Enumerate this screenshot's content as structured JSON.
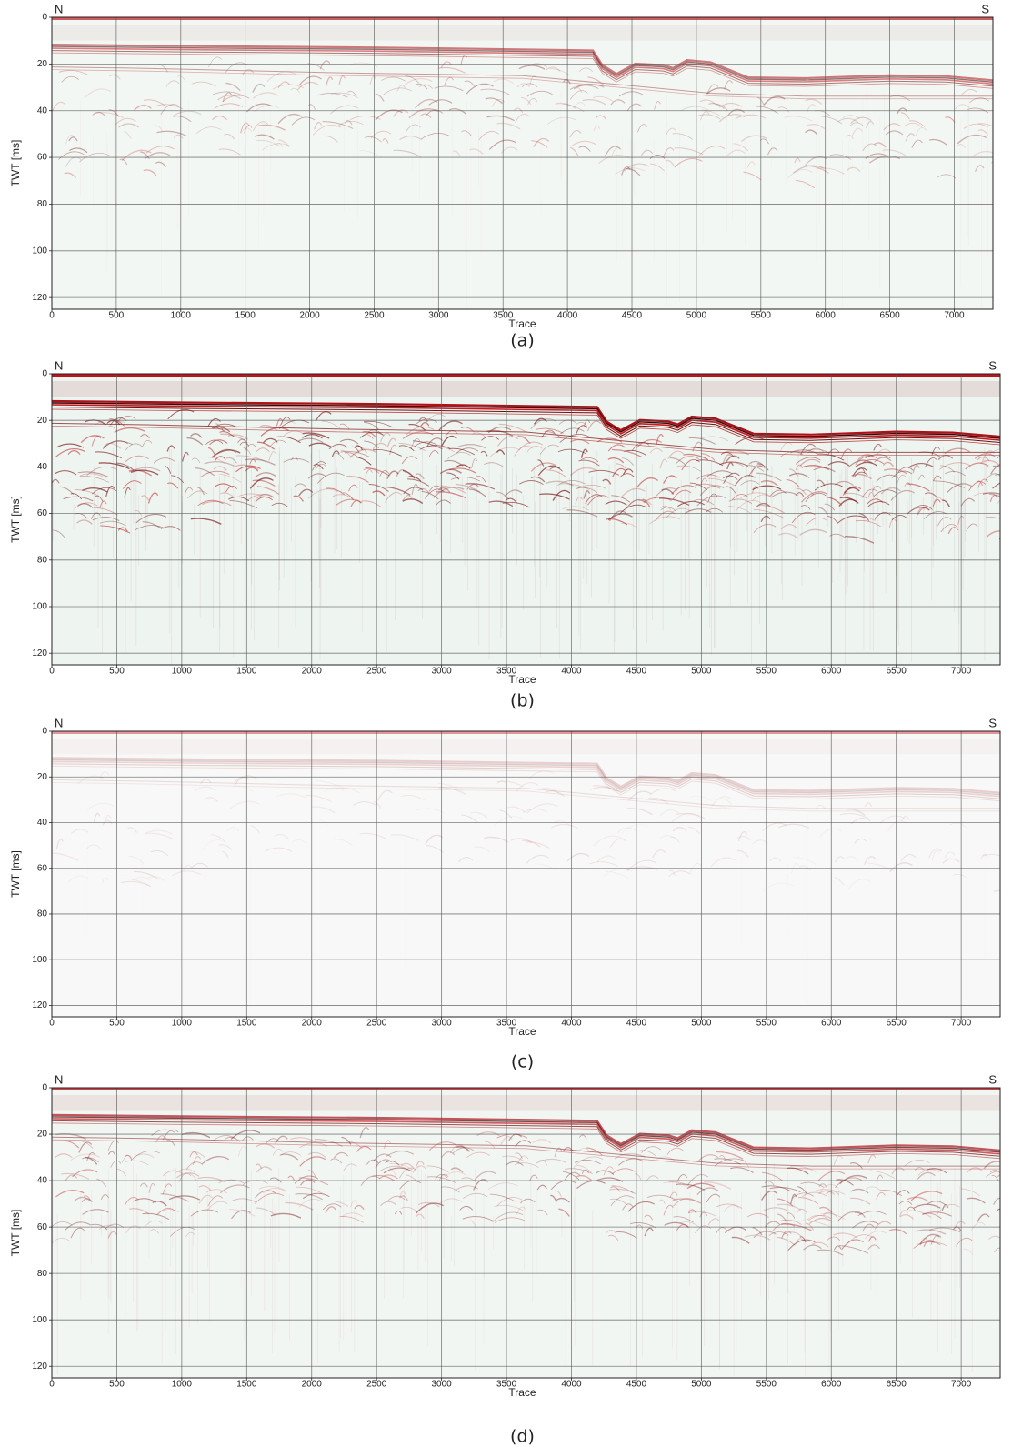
{
  "chart_data": [
    {
      "type": "seismic",
      "caption": "(a)",
      "left_label": "N",
      "right_label": "S",
      "xlabel": "Trace",
      "ylabel": "TWT [ms]",
      "xlim": [
        0,
        7300
      ],
      "ylim": [
        125,
        0
      ],
      "xticks": [
        0,
        500,
        1000,
        1500,
        2000,
        2500,
        3000,
        3500,
        4000,
        4500,
        5000,
        5500,
        6000,
        6500,
        7000
      ],
      "yticks": [
        0,
        20,
        40,
        60,
        80,
        100,
        120
      ],
      "grid": true
    },
    {
      "type": "seismic",
      "caption": "(b)",
      "left_label": "N",
      "right_label": "S",
      "xlabel": "Trace",
      "ylabel": "TWT [ms]",
      "xlim": [
        0,
        7300
      ],
      "ylim": [
        125,
        0
      ],
      "xticks": [
        0,
        500,
        1000,
        1500,
        2000,
        2500,
        3000,
        3500,
        4000,
        4500,
        5000,
        5500,
        6000,
        6500,
        7000
      ],
      "yticks": [
        0,
        20,
        40,
        60,
        80,
        100,
        120
      ],
      "grid": true
    },
    {
      "type": "seismic",
      "caption": "(c)",
      "left_label": "N",
      "right_label": "S",
      "xlabel": "Trace",
      "ylabel": "TWT [ms]",
      "xlim": [
        0,
        7300
      ],
      "ylim": [
        125,
        0
      ],
      "xticks": [
        0,
        500,
        1000,
        1500,
        2000,
        2500,
        3000,
        3500,
        4000,
        4500,
        5000,
        5500,
        6000,
        6500,
        7000
      ],
      "yticks": [
        0,
        20,
        40,
        60,
        80,
        100,
        120
      ],
      "grid": true
    },
    {
      "type": "seismic",
      "caption": "(d)",
      "left_label": "N",
      "right_label": "S",
      "xlabel": "Trace",
      "ylabel": "TWT [ms]",
      "xlim": [
        0,
        7300
      ],
      "ylim": [
        125,
        0
      ],
      "xticks": [
        0,
        500,
        1000,
        1500,
        2000,
        2500,
        3000,
        3500,
        4000,
        4500,
        5000,
        5500,
        6000,
        6500,
        7000
      ],
      "yticks": [
        0,
        20,
        40,
        60,
        80,
        100,
        120
      ],
      "grid": true
    }
  ]
}
